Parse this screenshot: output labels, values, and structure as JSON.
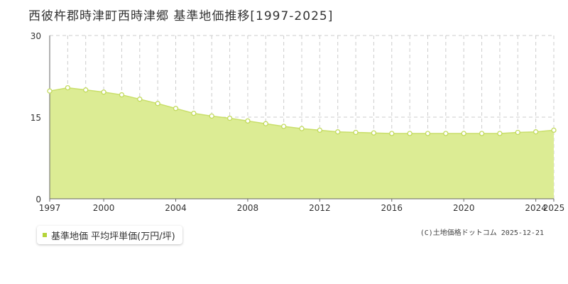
{
  "chart_data": {
    "type": "area",
    "title": "西彼杵郡時津町西時津郷 基準地価推移[1997-2025]",
    "xlabel": "",
    "ylabel": "",
    "x": [
      1997,
      1998,
      1999,
      2000,
      2001,
      2002,
      2003,
      2004,
      2005,
      2006,
      2007,
      2008,
      2009,
      2010,
      2011,
      2012,
      2013,
      2014,
      2015,
      2016,
      2017,
      2018,
      2019,
      2020,
      2021,
      2022,
      2023,
      2024,
      2025
    ],
    "series": [
      {
        "name": "基準地価 平均坪単価(万円/坪)",
        "values": [
          19.8,
          20.4,
          20.0,
          19.6,
          19.1,
          18.3,
          17.5,
          16.6,
          15.7,
          15.2,
          14.8,
          14.3,
          13.8,
          13.3,
          12.9,
          12.6,
          12.3,
          12.2,
          12.1,
          12.0,
          12.0,
          12.0,
          12.0,
          12.0,
          12.0,
          12.0,
          12.2,
          12.3,
          12.6
        ]
      }
    ],
    "xlim": [
      1997,
      2025
    ],
    "ylim": [
      0,
      30
    ],
    "x_ticks": [
      "1997",
      "2000",
      "2004",
      "2008",
      "2012",
      "2016",
      "2020",
      "2024",
      "2025"
    ],
    "y_ticks": [
      "0",
      "15",
      "30"
    ],
    "grid": true,
    "legend_position": "bottom-left",
    "colors": {
      "fill": "#dcec94",
      "line": "#c9df6a",
      "marker_stroke": "#c2da5c",
      "marker_fill": "#ffffff",
      "grid": "#cccccc",
      "legend_swatch": "#b5d43a"
    }
  },
  "credit": "(C)土地価格ドットコム 2025-12-21"
}
